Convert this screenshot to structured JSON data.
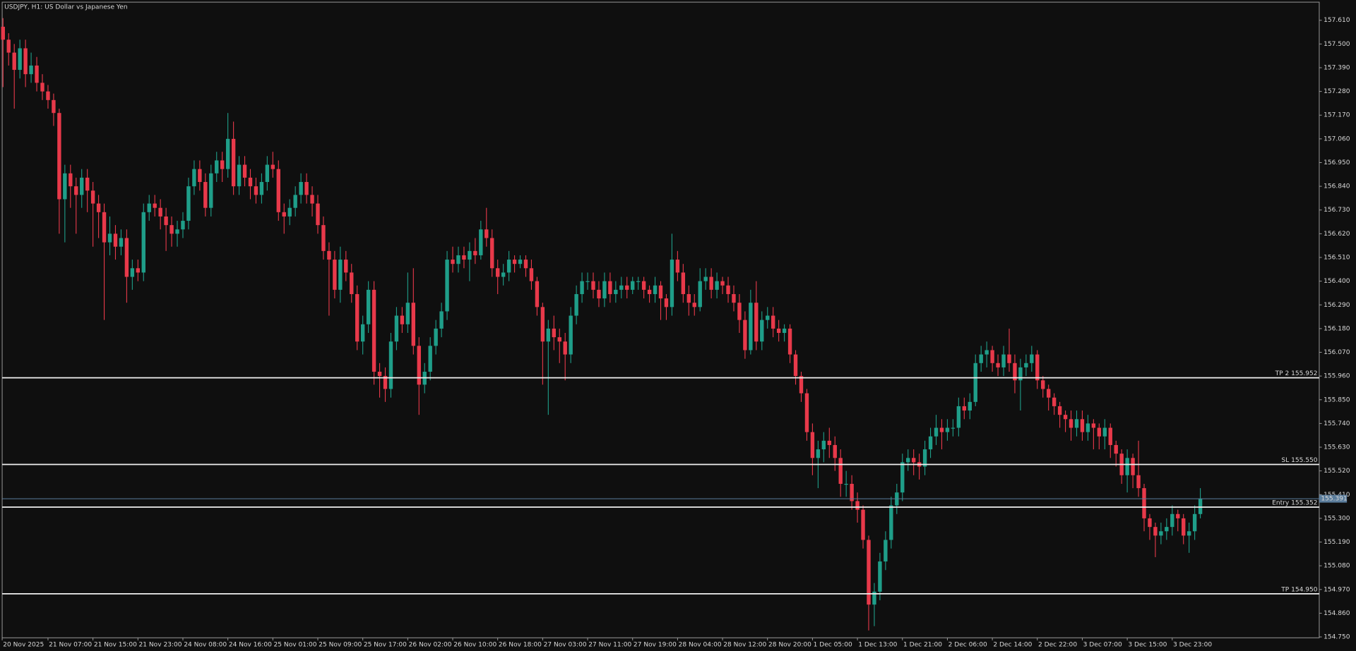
{
  "chart_data": {
    "type": "candlestick",
    "title": "USDJPY, H1:  US Dollar vs Japanese Yen",
    "up_color": "#1f9e89",
    "down_color": "#e8394a",
    "categories": [
      "20 Nov 2025",
      null,
      null,
      null,
      null,
      null,
      null,
      null,
      "21 Nov 07:00",
      null,
      null,
      null,
      null,
      null,
      null,
      null,
      "21 Nov 15:00",
      null,
      null,
      null,
      null,
      null,
      null,
      null,
      "21 Nov 23:00",
      null,
      null,
      null,
      null,
      null,
      null,
      null,
      "24 Nov 08:00",
      null,
      null,
      null,
      null,
      null,
      null,
      null,
      "24 Nov 16:00",
      null,
      null,
      null,
      null,
      null,
      null,
      null,
      "25 Nov 01:00",
      null,
      null,
      null,
      null,
      null,
      null,
      null,
      "25 Nov 09:00",
      null,
      null,
      null,
      null,
      null,
      null,
      null,
      "25 Nov 17:00",
      null,
      null,
      null,
      null,
      null,
      null,
      null,
      "26 Nov 02:00",
      null,
      null,
      null,
      null,
      null,
      null,
      null,
      "26 Nov 10:00",
      null,
      null,
      null,
      null,
      null,
      null,
      null,
      "26 Nov 18:00",
      null,
      null,
      null,
      null,
      null,
      null,
      null,
      "27 Nov 03:00",
      null,
      null,
      null,
      null,
      null,
      null,
      null,
      "27 Nov 11:00",
      null,
      null,
      null,
      null,
      null,
      null,
      null,
      "27 Nov 19:00",
      null,
      null,
      null,
      null,
      null,
      null,
      null,
      "28 Nov 04:00",
      null,
      null,
      null,
      null,
      null,
      null,
      null,
      "28 Nov 12:00",
      null,
      null,
      null,
      null,
      null,
      null,
      null,
      "28 Nov 20:00",
      null,
      null,
      null,
      null,
      null,
      null,
      null,
      "1 Dec 05:00",
      null,
      null,
      null,
      null,
      null,
      null,
      null,
      "1 Dec 13:00",
      null,
      null,
      null,
      null,
      null,
      null,
      null,
      "1 Dec 21:00",
      null,
      null,
      null,
      null,
      null,
      null,
      null,
      "2 Dec 06:00",
      null,
      null,
      null,
      null,
      null,
      null,
      null,
      "2 Dec 14:00",
      null,
      null,
      null,
      null,
      null,
      null,
      null,
      "2 Dec 22:00",
      null,
      null,
      null,
      null,
      null,
      null,
      null,
      "3 Dec 07:00",
      null,
      null,
      null,
      null,
      null,
      null,
      null,
      "3 Dec 15:00",
      null,
      null,
      null,
      null,
      null,
      null,
      null,
      "3 Dec 23:00",
      null,
      null,
      null,
      null,
      null
    ],
    "open": [
      157.58,
      157.52,
      157.46,
      157.38,
      157.48,
      157.36,
      157.4,
      157.32,
      157.28,
      157.24,
      157.18,
      156.78,
      156.9,
      156.84,
      156.8,
      156.88,
      156.82,
      156.76,
      156.72,
      156.58,
      156.62,
      156.56,
      156.6,
      156.42,
      156.46,
      156.44,
      156.72,
      156.76,
      156.74,
      156.7,
      156.66,
      156.62,
      156.64,
      156.68,
      156.84,
      156.92,
      156.86,
      156.74,
      156.9,
      156.96,
      156.92,
      157.06,
      156.84,
      156.94,
      156.88,
      156.84,
      156.8,
      156.86,
      156.94,
      156.92,
      156.72,
      156.7,
      156.74,
      156.8,
      156.86,
      156.8,
      156.76,
      156.66,
      156.54,
      156.5,
      156.36,
      156.5,
      156.44,
      156.34,
      156.12,
      156.2,
      156.36,
      155.98,
      155.96,
      155.9,
      156.12,
      156.24,
      156.2,
      156.3,
      156.1,
      155.92,
      155.98,
      156.1,
      156.18,
      156.26,
      156.5,
      156.48,
      156.52,
      156.5,
      156.54,
      156.52,
      156.64,
      156.6,
      156.46,
      156.42,
      156.44,
      156.5,
      156.48,
      156.5,
      156.46,
      156.4,
      156.28,
      156.12,
      156.18,
      156.14,
      156.12,
      156.06,
      156.24,
      156.34,
      156.4,
      156.4,
      156.36,
      156.32,
      156.4,
      156.34,
      156.36,
      156.38,
      156.36,
      156.4,
      156.4,
      156.36,
      156.34,
      156.38,
      156.32,
      156.28,
      156.5,
      156.44,
      156.34,
      156.3,
      156.28,
      156.4,
      156.42,
      156.36,
      156.4,
      156.38,
      156.34,
      156.3,
      156.22,
      156.08,
      156.3,
      156.12,
      156.22,
      156.24,
      156.18,
      156.16,
      156.18,
      156.06,
      155.96,
      155.88,
      155.7,
      155.58,
      155.62,
      155.66,
      155.64,
      155.58,
      155.46,
      155.46,
      155.38,
      155.34,
      155.2,
      154.9,
      154.96,
      155.1,
      155.2,
      155.36,
      155.42,
      155.56,
      155.58,
      155.56,
      155.54,
      155.62,
      155.68,
      155.72,
      155.7,
      155.72,
      155.72,
      155.82,
      155.8,
      155.84,
      156.02,
      156.06,
      156.08,
      156.02,
      156.0,
      156.06,
      156.02,
      155.94,
      156.0,
      156.02,
      156.06,
      155.94,
      155.9,
      155.86,
      155.82,
      155.78,
      155.76,
      155.72,
      155.76,
      155.7,
      155.74,
      155.72,
      155.68,
      155.72,
      155.64,
      155.6,
      155.5,
      155.58,
      155.5,
      155.44,
      155.3,
      155.26,
      155.22,
      155.24,
      155.26,
      155.32,
      155.3,
      155.22,
      155.24,
      155.32
    ],
    "high": [
      157.62,
      157.55,
      157.5,
      157.52,
      157.52,
      157.46,
      157.44,
      157.36,
      157.31,
      157.27,
      157.2,
      156.94,
      156.94,
      156.88,
      156.92,
      156.92,
      156.86,
      156.8,
      156.76,
      156.7,
      156.66,
      156.64,
      156.64,
      156.5,
      156.5,
      156.76,
      156.8,
      156.8,
      156.78,
      156.74,
      156.7,
      156.68,
      156.72,
      156.88,
      156.96,
      156.96,
      156.9,
      156.94,
      157.0,
      157.0,
      157.18,
      157.14,
      156.98,
      156.98,
      156.92,
      156.88,
      156.9,
      156.98,
      157.0,
      156.96,
      156.76,
      156.78,
      156.84,
      156.9,
      156.9,
      156.84,
      156.8,
      156.7,
      156.58,
      156.54,
      156.56,
      156.54,
      156.48,
      156.38,
      156.24,
      156.4,
      156.4,
      156.02,
      156.0,
      156.16,
      156.28,
      156.28,
      156.44,
      156.46,
      156.14,
      156.02,
      156.14,
      156.22,
      156.3,
      156.54,
      156.56,
      156.56,
      156.56,
      156.58,
      156.6,
      156.68,
      156.74,
      156.64,
      156.5,
      156.48,
      156.54,
      156.52,
      156.52,
      156.52,
      156.5,
      156.42,
      156.3,
      156.22,
      156.24,
      156.18,
      156.16,
      156.28,
      156.38,
      156.44,
      156.44,
      156.44,
      156.4,
      156.44,
      156.44,
      156.4,
      156.42,
      156.42,
      156.42,
      156.42,
      156.42,
      156.38,
      156.42,
      156.4,
      156.34,
      156.62,
      156.54,
      156.48,
      156.38,
      156.34,
      156.46,
      156.46,
      156.46,
      156.44,
      156.42,
      156.42,
      156.38,
      156.34,
      156.26,
      156.36,
      156.4,
      156.26,
      156.28,
      156.28,
      156.22,
      156.2,
      156.2,
      156.08,
      155.98,
      155.9,
      155.74,
      155.66,
      155.7,
      155.72,
      155.68,
      155.62,
      155.52,
      155.5,
      155.42,
      155.36,
      155.22,
      155.0,
      155.14,
      155.24,
      155.4,
      155.46,
      155.6,
      155.62,
      155.62,
      155.6,
      155.66,
      155.72,
      155.78,
      155.76,
      155.76,
      155.76,
      155.86,
      155.86,
      155.88,
      156.06,
      156.1,
      156.12,
      156.1,
      156.06,
      156.1,
      156.18,
      156.06,
      156.04,
      156.06,
      156.1,
      156.08,
      155.96,
      155.92,
      155.88,
      155.84,
      155.8,
      155.8,
      155.8,
      155.8,
      155.78,
      155.76,
      155.74,
      155.76,
      155.74,
      155.66,
      155.62,
      155.62,
      155.6,
      155.66,
      155.46,
      155.32,
      155.28,
      155.28,
      155.3,
      155.36,
      155.34,
      155.32,
      155.28,
      155.36,
      155.44
    ],
    "low": [
      157.3,
      157.4,
      157.2,
      157.34,
      157.3,
      157.32,
      157.28,
      157.24,
      157.2,
      157.12,
      156.62,
      156.58,
      156.74,
      156.62,
      156.74,
      156.72,
      156.56,
      156.6,
      156.22,
      156.52,
      156.5,
      156.52,
      156.3,
      156.36,
      156.4,
      156.4,
      156.68,
      156.7,
      156.64,
      156.54,
      156.56,
      156.56,
      156.6,
      156.64,
      156.8,
      156.82,
      156.7,
      156.7,
      156.86,
      156.86,
      156.88,
      156.8,
      156.8,
      156.84,
      156.78,
      156.76,
      156.76,
      156.82,
      156.88,
      156.68,
      156.62,
      156.66,
      156.7,
      156.76,
      156.76,
      156.7,
      156.62,
      156.5,
      156.24,
      156.32,
      156.3,
      156.4,
      156.3,
      156.08,
      156.06,
      156.16,
      155.92,
      155.86,
      155.84,
      155.86,
      156.08,
      156.16,
      156.16,
      156.06,
      155.78,
      155.88,
      155.94,
      156.06,
      156.14,
      156.22,
      156.44,
      156.44,
      156.46,
      156.4,
      156.48,
      156.5,
      156.56,
      156.42,
      156.34,
      156.38,
      156.4,
      156.44,
      156.46,
      156.42,
      156.36,
      156.24,
      155.92,
      155.78,
      156.08,
      156.02,
      155.94,
      156.02,
      156.2,
      156.3,
      156.36,
      156.32,
      156.28,
      156.28,
      156.3,
      156.3,
      156.32,
      156.32,
      156.34,
      156.36,
      156.32,
      156.3,
      156.3,
      156.22,
      156.22,
      156.24,
      156.4,
      156.3,
      156.24,
      156.24,
      156.26,
      156.36,
      156.32,
      156.32,
      156.34,
      156.3,
      156.26,
      156.16,
      156.04,
      156.06,
      156.08,
      156.08,
      156.18,
      156.14,
      156.12,
      156.12,
      156.02,
      155.92,
      155.84,
      155.66,
      155.5,
      155.44,
      155.56,
      155.58,
      155.52,
      155.4,
      155.4,
      155.34,
      155.28,
      155.16,
      154.78,
      154.8,
      154.92,
      155.06,
      155.16,
      155.32,
      155.38,
      155.52,
      155.5,
      155.48,
      155.5,
      155.58,
      155.64,
      155.62,
      155.66,
      155.68,
      155.68,
      155.76,
      155.76,
      155.82,
      155.98,
      156.0,
      155.98,
      155.96,
      155.96,
      155.98,
      155.88,
      155.8,
      155.96,
      155.98,
      155.9,
      155.86,
      155.8,
      155.78,
      155.72,
      155.7,
      155.66,
      155.68,
      155.66,
      155.66,
      155.62,
      155.62,
      155.62,
      155.58,
      155.54,
      155.46,
      155.42,
      155.44,
      155.4,
      155.24,
      155.2,
      155.12,
      155.18,
      155.2,
      155.22,
      155.24,
      155.18,
      155.14,
      155.2,
      155.3
    ],
    "close": [
      157.52,
      157.46,
      157.38,
      157.48,
      157.36,
      157.4,
      157.32,
      157.28,
      157.24,
      157.18,
      156.78,
      156.9,
      156.84,
      156.8,
      156.88,
      156.82,
      156.76,
      156.72,
      156.58,
      156.62,
      156.56,
      156.6,
      156.42,
      156.46,
      156.44,
      156.72,
      156.76,
      156.74,
      156.7,
      156.66,
      156.62,
      156.64,
      156.68,
      156.84,
      156.92,
      156.86,
      156.74,
      156.9,
      156.96,
      156.92,
      157.06,
      156.84,
      156.94,
      156.88,
      156.84,
      156.8,
      156.86,
      156.94,
      156.92,
      156.72,
      156.7,
      156.74,
      156.8,
      156.86,
      156.8,
      156.76,
      156.66,
      156.54,
      156.5,
      156.36,
      156.5,
      156.44,
      156.34,
      156.12,
      156.2,
      156.36,
      155.98,
      155.96,
      155.9,
      156.12,
      156.24,
      156.2,
      156.3,
      156.1,
      155.92,
      155.98,
      156.1,
      156.18,
      156.26,
      156.5,
      156.48,
      156.52,
      156.5,
      156.54,
      156.52,
      156.64,
      156.6,
      156.46,
      156.42,
      156.44,
      156.5,
      156.48,
      156.5,
      156.46,
      156.4,
      156.28,
      156.12,
      156.18,
      156.14,
      156.12,
      156.06,
      156.24,
      156.34,
      156.4,
      156.4,
      156.36,
      156.32,
      156.4,
      156.34,
      156.36,
      156.38,
      156.36,
      156.4,
      156.4,
      156.36,
      156.34,
      156.38,
      156.32,
      156.28,
      156.5,
      156.44,
      156.34,
      156.3,
      156.28,
      156.4,
      156.42,
      156.36,
      156.4,
      156.38,
      156.34,
      156.3,
      156.22,
      156.08,
      156.3,
      156.12,
      156.22,
      156.24,
      156.18,
      156.16,
      156.18,
      156.06,
      155.96,
      155.88,
      155.7,
      155.58,
      155.62,
      155.66,
      155.64,
      155.58,
      155.46,
      155.46,
      155.38,
      155.34,
      155.2,
      154.9,
      154.96,
      155.1,
      155.2,
      155.36,
      155.42,
      155.56,
      155.58,
      155.56,
      155.54,
      155.62,
      155.68,
      155.72,
      155.7,
      155.72,
      155.72,
      155.82,
      155.8,
      155.84,
      156.02,
      156.06,
      156.08,
      156.02,
      156.0,
      156.06,
      156.02,
      155.94,
      156.0,
      156.02,
      156.06,
      155.94,
      155.9,
      155.86,
      155.82,
      155.78,
      155.76,
      155.72,
      155.76,
      155.7,
      155.74,
      155.72,
      155.68,
      155.72,
      155.64,
      155.6,
      155.5,
      155.58,
      155.5,
      155.44,
      155.3,
      155.26,
      155.22,
      155.24,
      155.26,
      155.32,
      155.3,
      155.22,
      155.24,
      155.32,
      155.391
    ],
    "ylim": [
      154.746,
      157.694
    ],
    "yticks": [
      {
        "value": 157.61,
        "label": "157.610"
      },
      {
        "value": 157.5,
        "label": "157.500"
      },
      {
        "value": 157.39,
        "label": "157.390"
      },
      {
        "value": 157.28,
        "label": "157.280"
      },
      {
        "value": 157.17,
        "label": "157.170"
      },
      {
        "value": 157.06,
        "label": "157.060"
      },
      {
        "value": 156.95,
        "label": "156.950"
      },
      {
        "value": 156.84,
        "label": "156.840"
      },
      {
        "value": 156.73,
        "label": "156.730"
      },
      {
        "value": 156.62,
        "label": "156.620"
      },
      {
        "value": 156.51,
        "label": "156.510"
      },
      {
        "value": 156.4,
        "label": "156.400"
      },
      {
        "value": 156.29,
        "label": "156.290"
      },
      {
        "value": 156.18,
        "label": "156.180"
      },
      {
        "value": 156.07,
        "label": "156.070"
      },
      {
        "value": 155.96,
        "label": "155.960"
      },
      {
        "value": 155.85,
        "label": "155.850"
      },
      {
        "value": 155.74,
        "label": "155.740"
      },
      {
        "value": 155.63,
        "label": "155.630"
      },
      {
        "value": 155.52,
        "label": "155.520"
      },
      {
        "value": 155.41,
        "label": "155.410"
      },
      {
        "value": 155.3,
        "label": "155.300"
      },
      {
        "value": 155.19,
        "label": "155.190"
      },
      {
        "value": 155.08,
        "label": "155.080"
      },
      {
        "value": 154.97,
        "label": "154.970"
      },
      {
        "value": 154.86,
        "label": "154.860"
      },
      {
        "value": 154.75,
        "label": "154.750"
      }
    ],
    "levels": [
      {
        "label": "TP 2 155.952",
        "value": 155.952
      },
      {
        "label": "SL 155.550",
        "value": 155.55
      },
      {
        "label": "Entry 155.352",
        "value": 155.352
      },
      {
        "label": "TP 154.950",
        "value": 154.95
      }
    ],
    "last_price": {
      "value": 155.391,
      "label": "155.391"
    }
  }
}
